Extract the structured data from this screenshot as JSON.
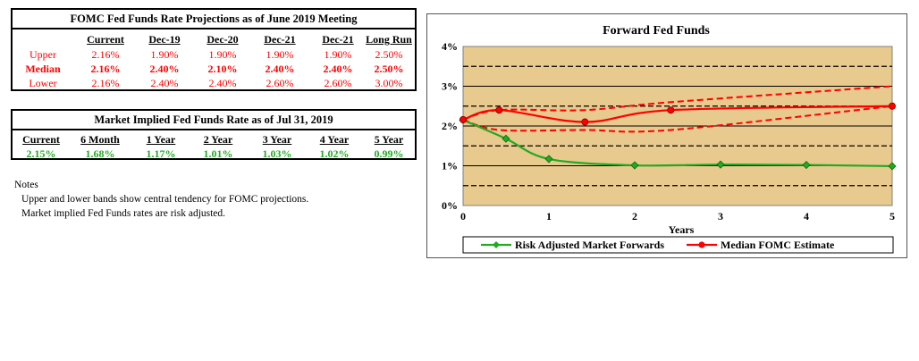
{
  "fomc_table": {
    "title": "FOMC Fed Funds Rate Projections as of June 2019 Meeting",
    "headers": [
      "Current",
      "Dec-19",
      "Dec-20",
      "Dec-21",
      "Dec-21",
      "Long Run"
    ],
    "rows": [
      {
        "label": "Upper",
        "values": [
          "2.16%",
          "1.90%",
          "1.90%",
          "1.90%",
          "1.90%",
          "2.50%"
        ]
      },
      {
        "label": "Median",
        "values": [
          "2.16%",
          "2.40%",
          "2.10%",
          "2.40%",
          "2.40%",
          "2.50%"
        ]
      },
      {
        "label": "Lower",
        "values": [
          "2.16%",
          "2.40%",
          "2.40%",
          "2.60%",
          "2.60%",
          "3.00%"
        ]
      }
    ]
  },
  "market_table": {
    "title": "Market Implied Fed Funds Rate as of Jul 31, 2019",
    "headers": [
      "Current",
      "6 Month",
      "1 Year",
      "2 Year",
      "3 Year",
      "4 Year",
      "5 Year"
    ],
    "values": [
      "2.15%",
      "1.68%",
      "1.17%",
      "1.01%",
      "1.03%",
      "1.02%",
      "0.99%"
    ]
  },
  "notes": {
    "heading": "Notes",
    "lines": [
      "Upper and lower bands show central tendency for FOMC projections.",
      "Market implied Fed Funds rates are risk adjusted."
    ]
  },
  "colors": {
    "fomc_red": "#ff0000",
    "market_green": "#22aa22",
    "plot_background": "#e8c98e"
  },
  "chart_data": {
    "type": "line",
    "title": "Forward Fed Funds",
    "xlabel": "Years",
    "ylabel": "",
    "xlim": [
      0,
      5
    ],
    "ylim": [
      0,
      4
    ],
    "x_ticks": [
      "0",
      "1",
      "2",
      "3",
      "4",
      "5"
    ],
    "y_ticks": [
      "0%",
      "1%",
      "2%",
      "3%",
      "4%"
    ],
    "gridlines_dashed": [
      0.5,
      1.5,
      2.5,
      3.5
    ],
    "gridlines_solid": [
      1,
      2,
      3
    ],
    "legend_position": "bottom",
    "series": [
      {
        "name": "Risk Adjusted Market Forwards",
        "color": "#22aa22",
        "style": "solid",
        "marker": "diamond",
        "x": [
          0,
          0.5,
          1,
          2,
          3,
          4,
          5
        ],
        "y": [
          2.15,
          1.68,
          1.17,
          1.01,
          1.03,
          1.02,
          0.99
        ]
      },
      {
        "name": "Median FOMC Estimate",
        "color": "#ff0000",
        "style": "solid",
        "marker": "circle",
        "x": [
          0,
          0.42,
          1.42,
          2.42,
          5
        ],
        "y": [
          2.16,
          2.4,
          2.1,
          2.4,
          2.5
        ]
      },
      {
        "name": "",
        "color": "#ff0000",
        "style": "dashed",
        "marker": "none",
        "x": [
          0,
          0.42,
          1.42,
          2.42,
          5
        ],
        "y": [
          2.16,
          2.4,
          2.4,
          2.6,
          3.0
        ]
      },
      {
        "name": "",
        "color": "#ff0000",
        "style": "dashed",
        "marker": "none",
        "x": [
          0,
          0.42,
          1.42,
          2.42,
          5
        ],
        "y": [
          2.16,
          1.9,
          1.9,
          1.9,
          2.5
        ]
      }
    ]
  }
}
